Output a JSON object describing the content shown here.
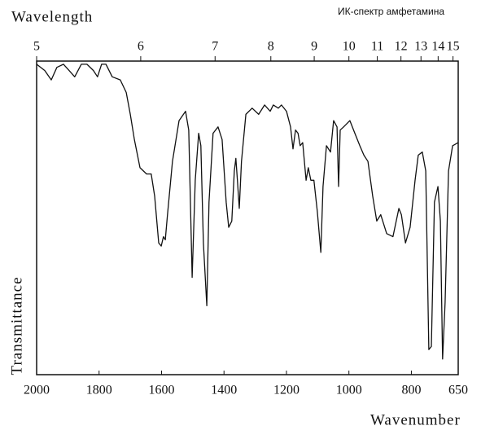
{
  "chart_data": {
    "type": "line",
    "title": "ИК-спектр амфетамина",
    "x2label": "Wavelength",
    "xlabel": "Wavenumber",
    "ylabel": "Transmittance",
    "color": "#111111",
    "xlim": [
      2000,
      650
    ],
    "xticks": [
      2000,
      1800,
      1600,
      1400,
      1200,
      1000,
      800,
      650
    ],
    "x2ticks": [
      5,
      6,
      7,
      8,
      9,
      10,
      11,
      12,
      13,
      14,
      15
    ],
    "ylim": [
      0,
      100
    ],
    "x": [
      2000,
      1974,
      1953,
      1935,
      1914,
      1896,
      1878,
      1857,
      1839,
      1818,
      1805,
      1792,
      1778,
      1758,
      1732,
      1713,
      1700,
      1687,
      1669,
      1648,
      1633,
      1622,
      1609,
      1601,
      1594,
      1588,
      1581,
      1565,
      1544,
      1523,
      1513,
      1502,
      1492,
      1481,
      1474,
      1466,
      1455,
      1448,
      1435,
      1419,
      1406,
      1393,
      1385,
      1375,
      1367,
      1362,
      1357,
      1351,
      1344,
      1330,
      1310,
      1289,
      1270,
      1252,
      1242,
      1226,
      1216,
      1200,
      1187,
      1179,
      1171,
      1163,
      1156,
      1148,
      1137,
      1130,
      1122,
      1112,
      1101,
      1090,
      1083,
      1072,
      1059,
      1049,
      1038,
      1033,
      1028,
      1017,
      997,
      981,
      965,
      952,
      939,
      924,
      911,
      898,
      879,
      859,
      840,
      832,
      819,
      804,
      788,
      778,
      765,
      754,
      744,
      736,
      726,
      715,
      707,
      700,
      692,
      681,
      668,
      650
    ],
    "values": [
      99,
      97,
      94,
      98,
      99,
      97,
      95,
      99,
      99,
      97,
      95,
      99,
      99,
      95,
      94,
      90,
      83,
      75,
      66,
      64,
      64,
      57,
      42,
      41,
      44,
      43,
      51,
      68,
      81,
      84,
      78,
      31,
      62,
      77,
      73,
      42,
      22,
      55,
      77,
      79,
      75,
      55,
      47,
      49,
      65,
      69,
      62,
      53,
      68,
      83,
      85,
      83,
      86,
      84,
      86,
      85,
      86,
      84,
      79,
      72,
      78,
      77,
      73,
      74,
      62,
      66,
      62,
      62,
      52,
      39,
      60,
      73,
      71,
      81,
      79,
      60,
      78,
      79,
      81,
      77,
      73,
      70,
      68,
      57,
      49,
      51,
      45,
      44,
      53,
      51,
      42,
      47,
      62,
      70,
      71,
      65,
      8,
      9,
      55,
      60,
      49,
      5,
      23,
      65,
      73,
      74
    ]
  }
}
